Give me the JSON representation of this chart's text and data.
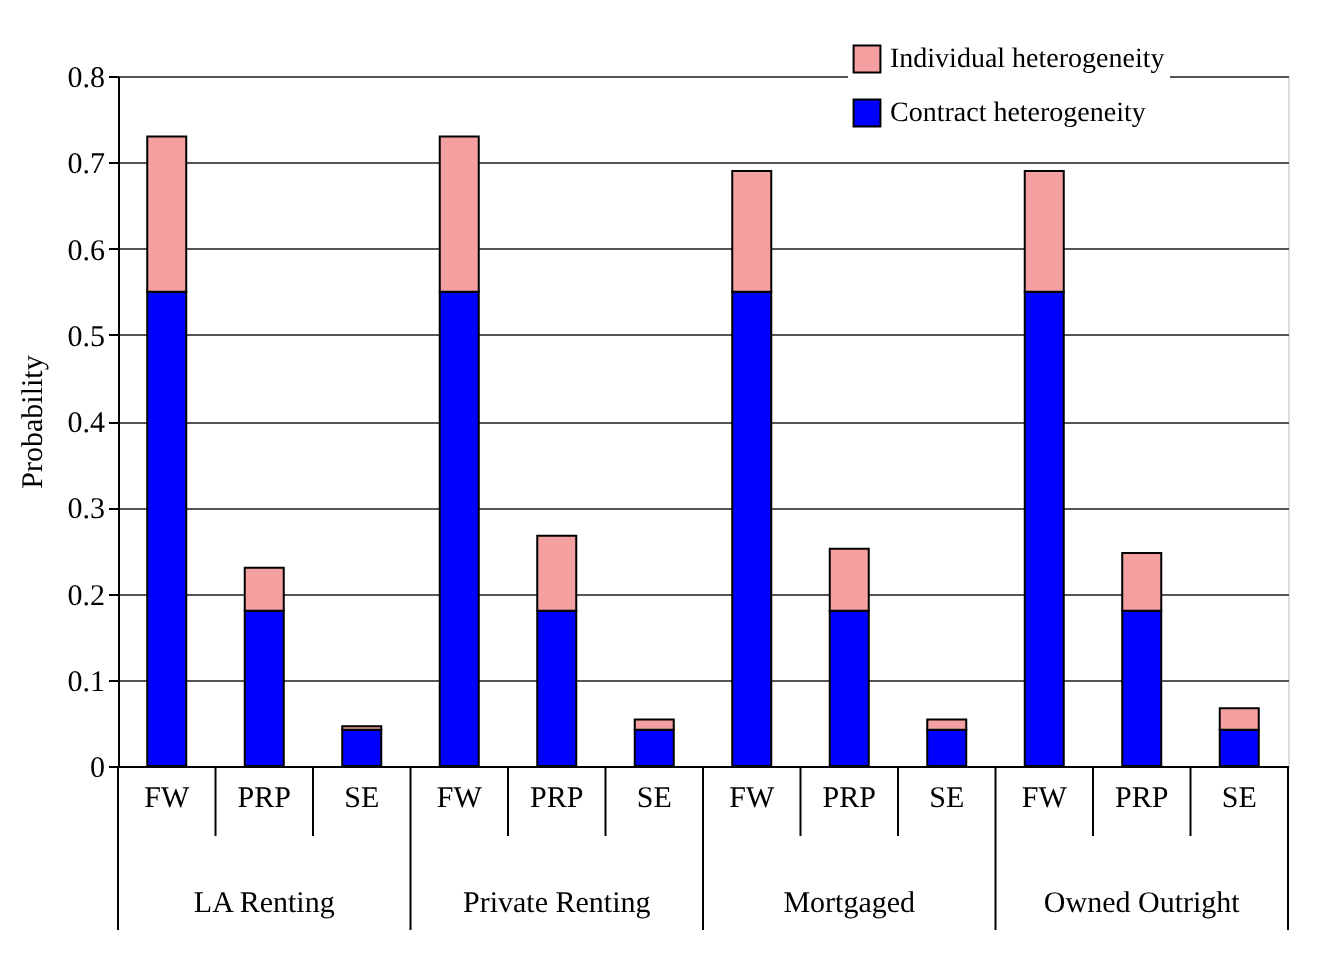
{
  "chart_data": {
    "type": "bar",
    "stacked": true,
    "ylabel": "Probability",
    "categories": [
      "FW",
      "PRP",
      "SE",
      "FW",
      "PRP",
      "SE",
      "FW",
      "PRP",
      "SE",
      "FW",
      "PRP",
      "SE"
    ],
    "annotations": [
      "LA Renting",
      "Private Renting",
      "Mortgaged",
      "Owned Outright"
    ],
    "series": [
      {
        "name": "Contract heterogeneity",
        "color": "#0000ff",
        "values": [
          0.55,
          0.18,
          0.042,
          0.55,
          0.18,
          0.042,
          0.55,
          0.18,
          0.042,
          0.55,
          0.18,
          0.042
        ]
      },
      {
        "name": "Individual heterogeneity",
        "color": "#f4a0a0",
        "values": [
          0.18,
          0.05,
          0.004,
          0.18,
          0.087,
          0.012,
          0.14,
          0.072,
          0.012,
          0.14,
          0.067,
          0.025
        ]
      }
    ],
    "ylim": [
      0,
      0.8
    ],
    "yticks": [
      0,
      0.1,
      0.2,
      0.3,
      0.4,
      0.5,
      0.6,
      0.7,
      0.8
    ],
    "grid": "y",
    "legend": "top right"
  }
}
